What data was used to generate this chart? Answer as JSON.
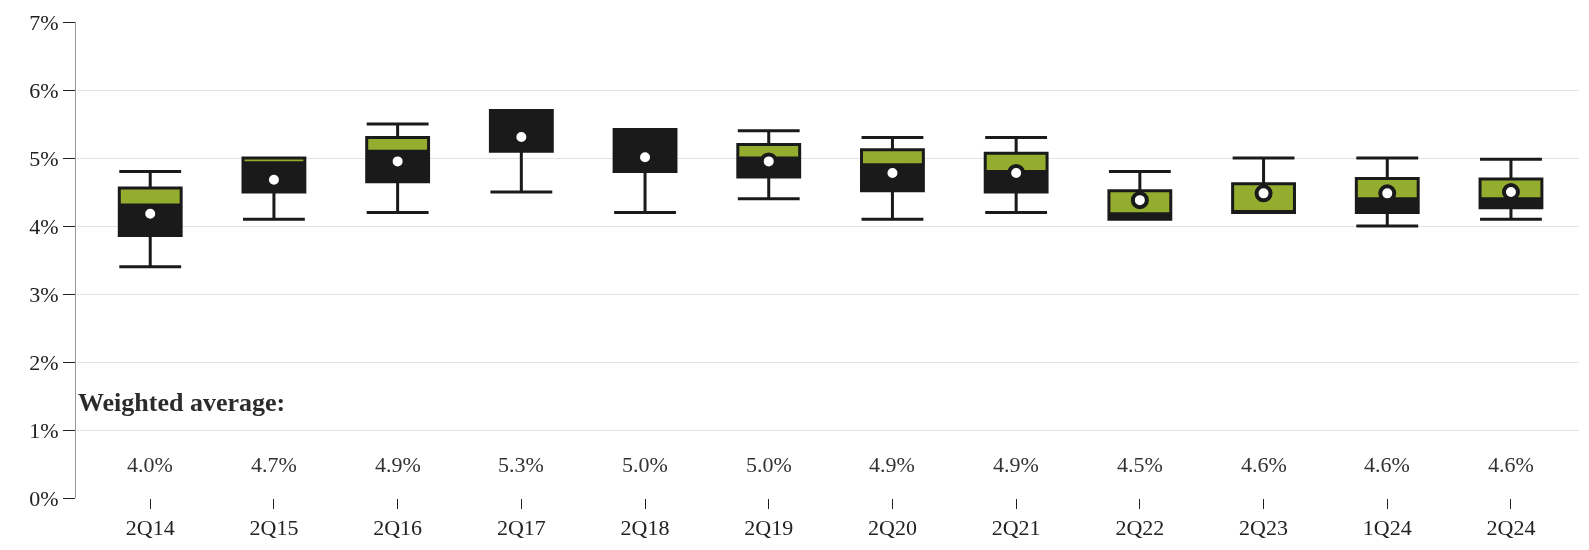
{
  "chart_data": {
    "type": "box",
    "categories": [
      "2Q14",
      "2Q15",
      "2Q16",
      "2Q17",
      "2Q18",
      "2Q19",
      "2Q20",
      "2Q21",
      "2Q22",
      "2Q23",
      "1Q24",
      "2Q24"
    ],
    "series": [
      {
        "color": "#1a1a1a",
        "colors": [
          "#94ad2e",
          "#94ad2e",
          "#94ad2e",
          "#94ad2e",
          "#94ad2e",
          "#94ad2e",
          "#94ad2e",
          "#94ad2e",
          "#94ad2e",
          "#94ad2e",
          "#94ad2e",
          "#94ad2e"
        ],
        "boxes": [
          {
            "low": 3.4,
            "q1": 3.86,
            "median": 4.31,
            "q3": 4.56,
            "high": 4.8,
            "mean": 4.18
          },
          {
            "low": 4.1,
            "q1": 4.5,
            "median": 4.93,
            "q3": 5.0,
            "high": 5.0,
            "mean": 4.68
          },
          {
            "low": 4.2,
            "q1": 4.65,
            "median": 5.1,
            "q3": 5.3,
            "high": 5.5,
            "mean": 4.95
          },
          {
            "low": 4.5,
            "q1": 5.1,
            "median": 5.7,
            "q3": 5.7,
            "high": 5.7,
            "mean": 5.31
          },
          {
            "low": 4.2,
            "q1": 4.8,
            "median": 5.42,
            "q3": 5.42,
            "high": 5.42,
            "mean": 5.01
          },
          {
            "low": 4.4,
            "q1": 4.72,
            "median": 5.0,
            "q3": 5.2,
            "high": 5.4,
            "mean": 4.95
          },
          {
            "low": 4.1,
            "q1": 4.52,
            "median": 4.9,
            "q3": 5.12,
            "high": 5.3,
            "mean": 4.78
          },
          {
            "low": 4.2,
            "q1": 4.5,
            "median": 4.8,
            "q3": 5.07,
            "high": 5.3,
            "mean": 4.78
          },
          {
            "low": 4.1,
            "q1": 4.1,
            "median": 4.18,
            "q3": 4.52,
            "high": 4.8,
            "mean": 4.38
          },
          {
            "low": 4.2,
            "q1": 4.2,
            "median": 4.2,
            "q3": 4.62,
            "high": 5.0,
            "mean": 4.48
          },
          {
            "low": 4.0,
            "q1": 4.2,
            "median": 4.4,
            "q3": 4.7,
            "high": 5.0,
            "mean": 4.48
          },
          {
            "low": 4.1,
            "q1": 4.27,
            "median": 4.4,
            "q3": 4.69,
            "high": 4.98,
            "mean": 4.5
          }
        ]
      }
    ],
    "ylim": [
      0,
      7
    ],
    "yticks": [
      {
        "value": 0,
        "label": "0%"
      },
      {
        "value": 1,
        "label": "1%"
      },
      {
        "value": 2,
        "label": "2%"
      },
      {
        "value": 3,
        "label": "3%"
      },
      {
        "value": 4,
        "label": "4%"
      },
      {
        "value": 5,
        "label": "5%"
      },
      {
        "value": 6,
        "label": "6%"
      },
      {
        "value": 7,
        "label": "7%"
      }
    ],
    "grid": "y",
    "marker": "circle",
    "annotations": [
      "Weighted average:",
      "4.0%",
      "4.7%",
      "4.9%",
      "5.3%",
      "5.0%",
      "5.0%",
      "4.9%",
      "4.9%",
      "4.5%",
      "4.6%",
      "4.6%",
      "4.6%"
    ]
  }
}
